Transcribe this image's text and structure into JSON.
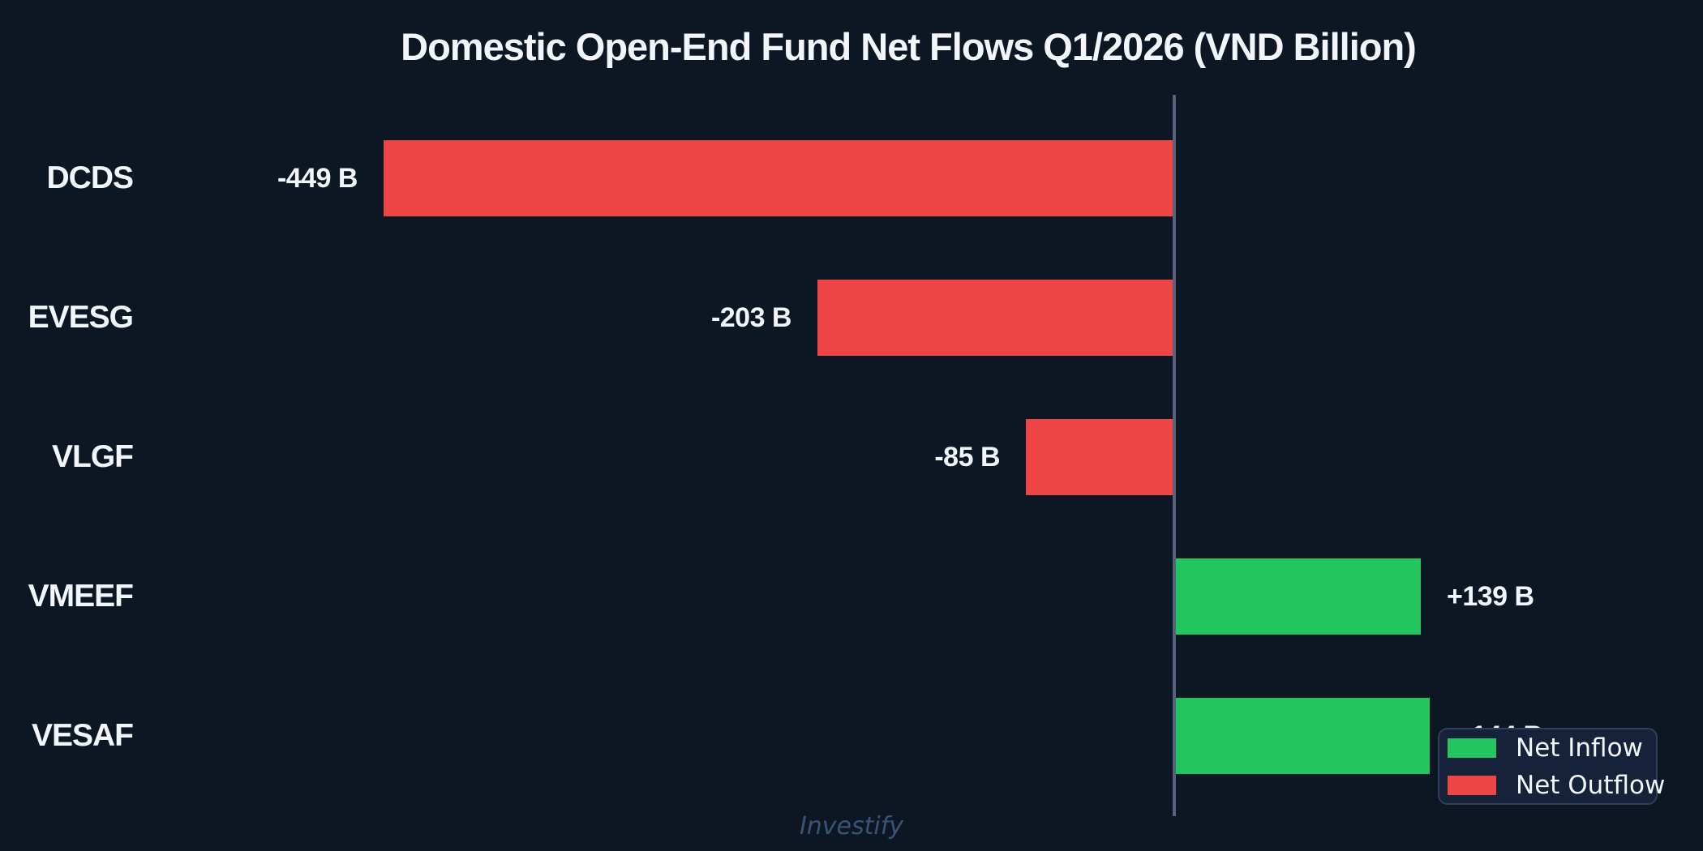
{
  "chart_data": {
    "type": "bar",
    "orientation": "horizontal",
    "title": "Domestic Open-End Fund Net Flows Q1/2026 (VND Billion)",
    "unit": "VND Billion",
    "categories": [
      "DCDS",
      "EVESG",
      "VLGF",
      "VMEEF",
      "VESAF"
    ],
    "values": [
      -449,
      -203,
      -85,
      139,
      144
    ],
    "value_labels": [
      "-449 B",
      "-203 B",
      "-85 B",
      "+139 B",
      "+144 B"
    ],
    "bar_directions": [
      "negative",
      "negative",
      "negative",
      "positive",
      "positive"
    ],
    "xlim": [
      -600,
      300
    ],
    "grid": false,
    "zero_axis": true,
    "legend_position": "lower-right"
  },
  "legend": {
    "items": [
      {
        "label": "Net Inflow",
        "type": "inflow"
      },
      {
        "label": "Net Outflow",
        "type": "outflow"
      }
    ]
  },
  "watermark": "Investify",
  "colors": {
    "background": "#0d1724",
    "text": "#f2f6fa",
    "inflow": "#22c55e",
    "outflow": "#ee4545",
    "axis": "#57627a",
    "legend_bg": "#15223a",
    "legend_border": "#2f3f5e",
    "watermark": "#3b5375"
  }
}
